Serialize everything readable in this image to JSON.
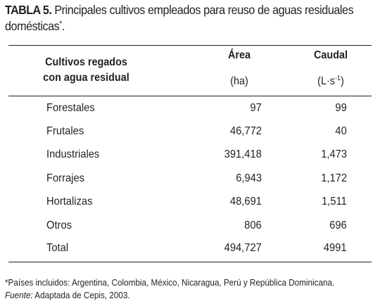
{
  "caption": {
    "label": "TABLA 5.",
    "text_line1": "Principales cultivos empleados para reuso de aguas residuales",
    "text_line2": "domésticas",
    "marker": "*",
    "text_end": "."
  },
  "table": {
    "header": {
      "crop_line1": "Cultivos regados",
      "crop_line2": "con agua residual",
      "area": "Área",
      "flow": "Caudal",
      "area_unit": "(ha)",
      "flow_unit_base": "(L·s",
      "flow_unit_exp": "-1",
      "flow_unit_close": ")"
    },
    "rows": [
      {
        "crop": "Forestales",
        "area": "97",
        "flow": "99"
      },
      {
        "crop": "Frutales",
        "area": "46,772",
        "flow": "40"
      },
      {
        "crop": "Industriales",
        "area": "391,418",
        "flow": "1,473"
      },
      {
        "crop": "Forrajes",
        "area": "6,943",
        "flow": "1,172"
      },
      {
        "crop": "Hortalizas",
        "area": "48,691",
        "flow": "1,511"
      },
      {
        "crop": "Otros",
        "area": "806",
        "flow": "696"
      },
      {
        "crop": "Total",
        "area": "494,727",
        "flow": "4991"
      }
    ]
  },
  "footnotes": {
    "countries": "*Países incluidos: Argentina, Colombia, México, Nicaragua, Perú y República Dominicana.",
    "source_label": "Fuente:",
    "source_text": "Adaptada de Cepis, 2003."
  }
}
